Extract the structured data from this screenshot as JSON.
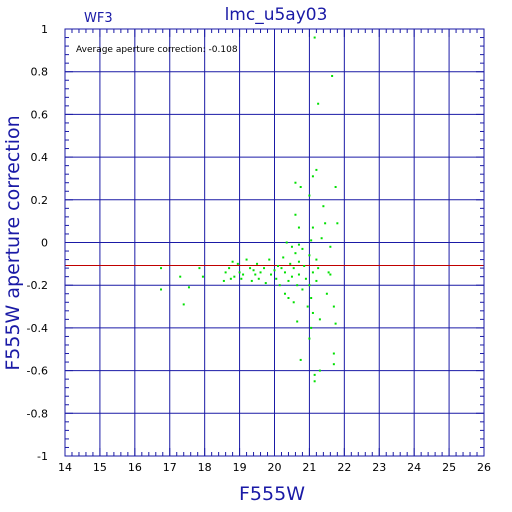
{
  "chart_data": {
    "type": "scatter",
    "title": "lmc_u5ay03",
    "subtitle": "WF3",
    "annotation": "Average aperture correction: -0.108",
    "xlabel": "F555W",
    "ylabel": "F555W aperture correction",
    "xlim": [
      14,
      26
    ],
    "ylim": [
      -1,
      1
    ],
    "x_ticks": [
      "14",
      "15",
      "16",
      "17",
      "18",
      "19",
      "20",
      "21",
      "22",
      "23",
      "24",
      "25",
      "26"
    ],
    "y_ticks": [
      "-1",
      "-0.8",
      "-0.6",
      "-0.4",
      "-0.2",
      "0",
      "0.2",
      "0.4",
      "0.6",
      "0.8",
      "1"
    ],
    "grid": true,
    "reference_line": -0.108,
    "colors": {
      "axis": "#1a1aa6",
      "points": "#00e000",
      "reference_line": "#c00000"
    },
    "series": [
      {
        "points": [
          [
            16.75,
            -0.12
          ],
          [
            16.75,
            -0.22
          ],
          [
            17.3,
            -0.16
          ],
          [
            17.4,
            -0.29
          ],
          [
            17.55,
            -0.21
          ],
          [
            17.85,
            -0.12
          ],
          [
            17.95,
            -0.16
          ],
          [
            18.55,
            -0.18
          ],
          [
            18.6,
            -0.14
          ],
          [
            18.7,
            -0.12
          ],
          [
            18.75,
            -0.17
          ],
          [
            18.8,
            -0.09
          ],
          [
            18.85,
            -0.16
          ],
          [
            18.95,
            -0.1
          ],
          [
            19.0,
            -0.14
          ],
          [
            19.05,
            -0.17
          ],
          [
            19.1,
            -0.15
          ],
          [
            19.2,
            -0.08
          ],
          [
            19.3,
            -0.12
          ],
          [
            19.35,
            -0.18
          ],
          [
            19.4,
            -0.13
          ],
          [
            19.45,
            -0.15
          ],
          [
            19.5,
            -0.1
          ],
          [
            19.55,
            -0.17
          ],
          [
            19.6,
            -0.14
          ],
          [
            19.7,
            -0.12
          ],
          [
            19.75,
            -0.19
          ],
          [
            19.85,
            -0.08
          ],
          [
            19.9,
            -0.15
          ],
          [
            20.0,
            -0.13
          ],
          [
            20.05,
            -0.17
          ],
          [
            20.1,
            -0.11
          ],
          [
            20.15,
            -0.2
          ],
          [
            20.2,
            -0.12
          ],
          [
            20.25,
            -0.07
          ],
          [
            20.3,
            -0.14
          ],
          [
            20.3,
            -0.24
          ],
          [
            20.35,
            0.0
          ],
          [
            20.4,
            -0.18
          ],
          [
            20.4,
            -0.26
          ],
          [
            20.45,
            -0.1
          ],
          [
            20.5,
            -0.16
          ],
          [
            20.5,
            -0.02
          ],
          [
            20.55,
            -0.12
          ],
          [
            20.55,
            -0.28
          ],
          [
            20.6,
            -0.05
          ],
          [
            20.6,
            0.13
          ],
          [
            20.6,
            0.28
          ],
          [
            20.65,
            -0.2
          ],
          [
            20.65,
            -0.37
          ],
          [
            20.7,
            -0.01
          ],
          [
            20.7,
            -0.09
          ],
          [
            20.7,
            -0.15
          ],
          [
            20.7,
            0.07
          ],
          [
            20.75,
            -0.55
          ],
          [
            20.75,
            0.26
          ],
          [
            20.8,
            -0.22
          ],
          [
            20.8,
            -0.03
          ],
          [
            20.85,
            -0.11
          ],
          [
            20.9,
            -0.17
          ],
          [
            20.95,
            -0.3
          ],
          [
            21.0,
            -0.06
          ],
          [
            21.0,
            -0.2
          ],
          [
            21.0,
            0.22
          ],
          [
            21.0,
            -0.45
          ],
          [
            21.05,
            -0.4
          ],
          [
            21.05,
            -0.26
          ],
          [
            21.05,
            0.01
          ],
          [
            21.1,
            -0.14
          ],
          [
            21.1,
            0.31
          ],
          [
            21.1,
            0.07
          ],
          [
            21.1,
            -0.33
          ],
          [
            21.15,
            -0.62
          ],
          [
            21.15,
            -0.65
          ],
          [
            21.15,
            0.96
          ],
          [
            21.2,
            0.34
          ],
          [
            21.2,
            -0.18
          ],
          [
            21.2,
            -0.08
          ],
          [
            21.25,
            0.65
          ],
          [
            21.25,
            -0.12
          ],
          [
            21.3,
            -0.36
          ],
          [
            21.3,
            -0.6
          ],
          [
            21.35,
            0.02
          ],
          [
            21.4,
            0.17
          ],
          [
            21.45,
            0.09
          ],
          [
            21.5,
            -0.24
          ],
          [
            21.55,
            -0.14
          ],
          [
            21.6,
            -0.15
          ],
          [
            21.6,
            -0.02
          ],
          [
            21.65,
            0.78
          ],
          [
            21.7,
            -0.3
          ],
          [
            21.7,
            -0.52
          ],
          [
            21.7,
            -0.57
          ],
          [
            21.75,
            0.26
          ],
          [
            21.75,
            -0.38
          ],
          [
            21.8,
            0.09
          ]
        ]
      }
    ]
  }
}
